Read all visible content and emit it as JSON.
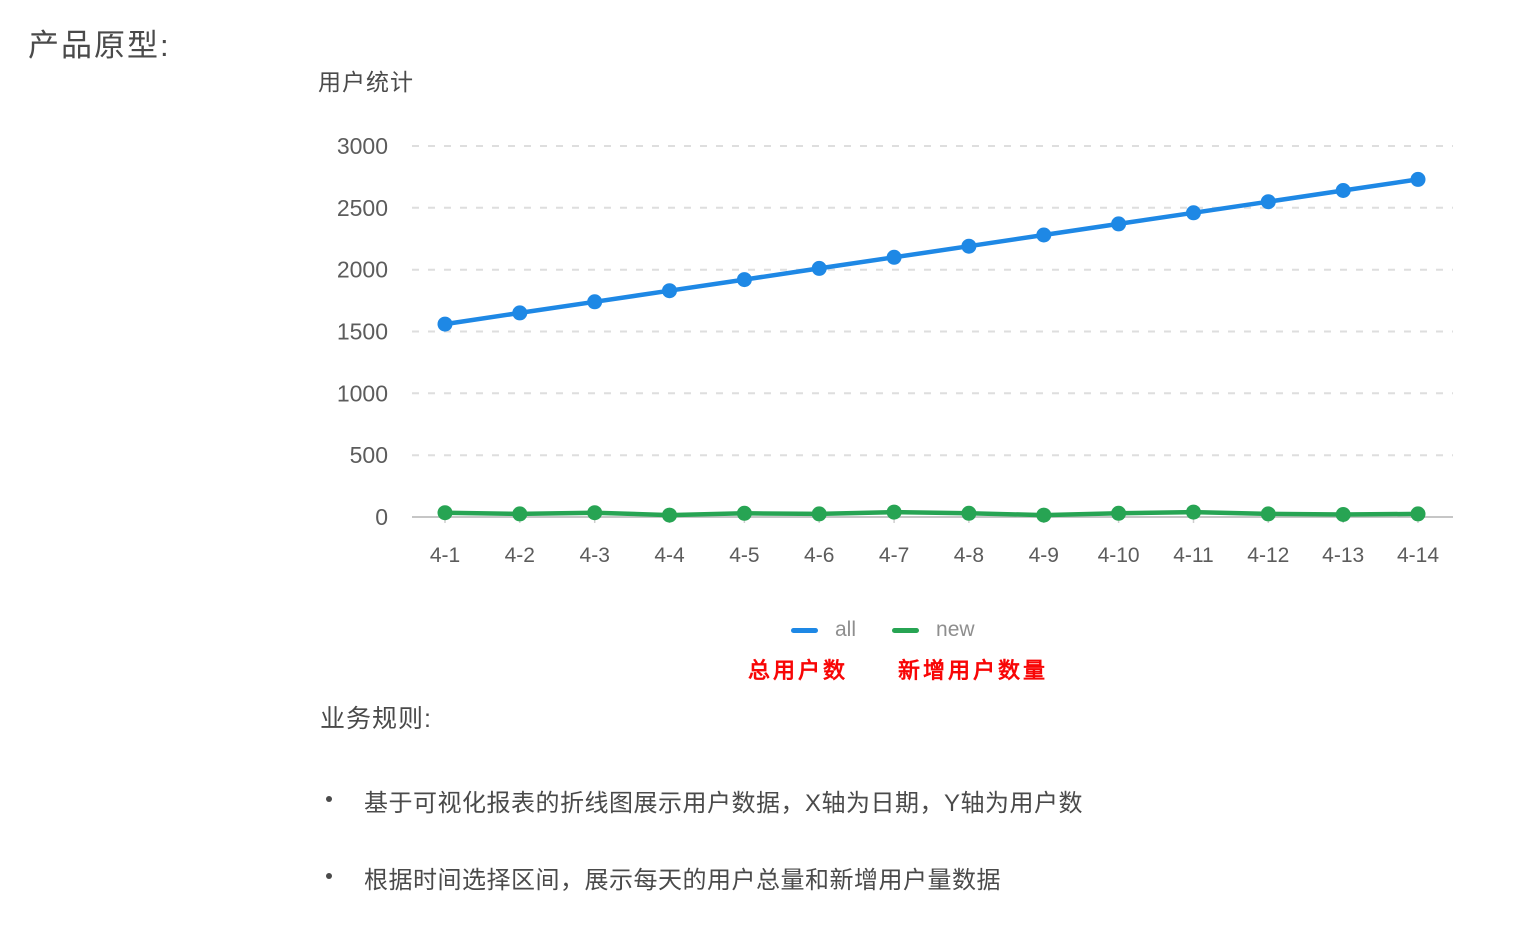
{
  "page": {
    "title": "产品原型:"
  },
  "chart_data": {
    "type": "line",
    "title": "用户统计",
    "categories": [
      "4-1",
      "4-2",
      "4-3",
      "4-4",
      "4-5",
      "4-6",
      "4-7",
      "4-8",
      "4-9",
      "4-10",
      "4-11",
      "4-12",
      "4-13",
      "4-14"
    ],
    "series": [
      {
        "name": "all",
        "color": "#1e88e5",
        "values": [
          1560,
          1650,
          1740,
          1830,
          1920,
          2010,
          2100,
          2190,
          2280,
          2370,
          2460,
          2550,
          2640,
          2730
        ]
      },
      {
        "name": "new",
        "color": "#27a453",
        "values": [
          35,
          25,
          35,
          15,
          30,
          25,
          40,
          30,
          15,
          30,
          40,
          25,
          20,
          25
        ]
      }
    ],
    "ylim": [
      0,
      3000
    ],
    "yticks": [
      0,
      500,
      1000,
      1500,
      2000,
      2500,
      3000
    ],
    "xlabel": "",
    "ylabel": "",
    "grid": "horizontal-dashed",
    "legend_position": "bottom"
  },
  "annotations": {
    "total_users_label": "总用户数",
    "new_users_label": "新增用户数量",
    "color": "#f80606"
  },
  "rules": {
    "heading": "业务规则:",
    "items": [
      "基于可视化报表的折线图展示用户数据，X轴为日期，Y轴为用户数",
      "根据时间选择区间，展示每天的用户总量和新增用户量数据"
    ]
  }
}
